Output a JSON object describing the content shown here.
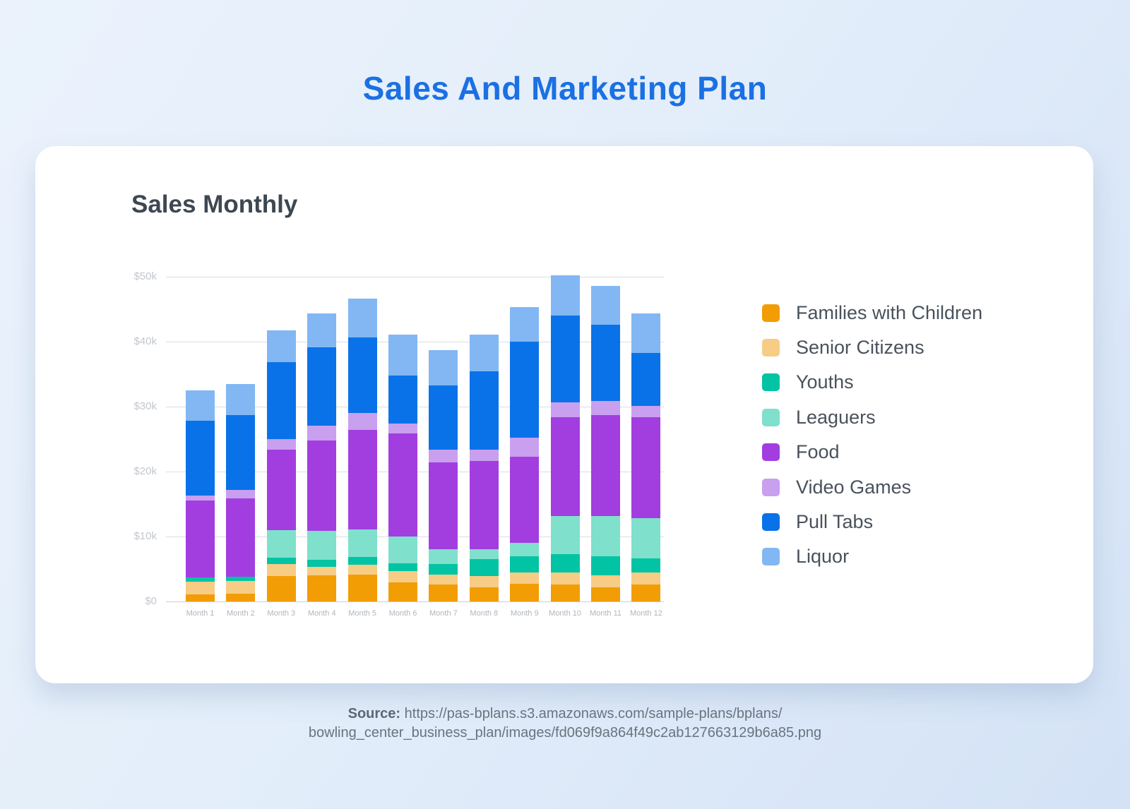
{
  "page_title": "Sales And Marketing Plan",
  "card": {
    "heading": "Sales Monthly"
  },
  "source": {
    "label": "Source:",
    "line1": "https://pas-bplans.s3.amazonaws.com/sample-plans/bplans/",
    "line2": "bowling_center_business_plan/images/fd069f9a864f49c2ab127663129b6a85.png"
  },
  "colors": {
    "title_blue": "#1B70E3",
    "heading_dark": "#3E4751",
    "axis_tick_label": "#C2C7CD",
    "month_label": "#B0B6BD",
    "gridline": "#DADDE1",
    "legend_text": "#49525C",
    "card_bg": "#FFFFFF",
    "page_bg_top": "#EBF2FC",
    "page_bg_bottom": "#D4E2F6",
    "source_text": "#6A737E"
  },
  "chart_data": {
    "type": "bar",
    "stacked": true,
    "title": "Sales Monthly",
    "grid": true,
    "legend_position": "right",
    "ylim": [
      0,
      50000
    ],
    "y_ticks": [
      {
        "label": "$0",
        "value": 0
      },
      {
        "label": "$10k",
        "value": 10000
      },
      {
        "label": "$20k",
        "value": 20000
      },
      {
        "label": "$30k",
        "value": 30000
      },
      {
        "label": "$40k",
        "value": 40000
      },
      {
        "label": "$50k",
        "value": 50000
      }
    ],
    "categories": [
      "Month 1",
      "Month 2",
      "Month 3",
      "Month 4",
      "Month 5",
      "Month 6",
      "Month 7",
      "Month 8",
      "Month 9",
      "Month 10",
      "Month 11",
      "Month 12"
    ],
    "series": [
      {
        "name": "Families with Children",
        "color": "#F29D04",
        "values": [
          1100,
          1200,
          3900,
          4000,
          4100,
          2900,
          2600,
          2200,
          2700,
          2600,
          2200,
          2600
        ]
      },
      {
        "name": "Senior Citizens",
        "color": "#F7CC85",
        "values": [
          1900,
          2000,
          1900,
          1300,
          1500,
          1800,
          1500,
          1700,
          1700,
          1800,
          1800,
          1800
        ]
      },
      {
        "name": "Youths",
        "color": "#02C4A4",
        "values": [
          700,
          600,
          900,
          1100,
          1200,
          1200,
          1700,
          2600,
          2500,
          2900,
          2900,
          2200
        ]
      },
      {
        "name": "Leaguers",
        "color": "#7FE0CC",
        "values": [
          0,
          0,
          4300,
          4500,
          4300,
          4100,
          2200,
          1500,
          2100,
          5900,
          6300,
          6200
        ]
      },
      {
        "name": "Food",
        "color": "#A23EE0",
        "values": [
          11800,
          12100,
          12400,
          13900,
          15300,
          15900,
          13400,
          13600,
          13300,
          15200,
          15500,
          15600
        ]
      },
      {
        "name": "Video Games",
        "color": "#C99FF0",
        "values": [
          800,
          1300,
          1600,
          2300,
          2600,
          1500,
          2000,
          1800,
          2900,
          2200,
          2200,
          1700
        ]
      },
      {
        "name": "Pull Tabs",
        "color": "#0A72E8",
        "values": [
          11500,
          11500,
          11900,
          12000,
          11700,
          7400,
          9900,
          12000,
          14800,
          13400,
          11700,
          8200
        ]
      },
      {
        "name": "Liquor",
        "color": "#82B7F3",
        "values": [
          4700,
          4800,
          4800,
          5200,
          5900,
          6300,
          5400,
          5700,
          5300,
          6200,
          6000,
          6000
        ]
      }
    ]
  }
}
